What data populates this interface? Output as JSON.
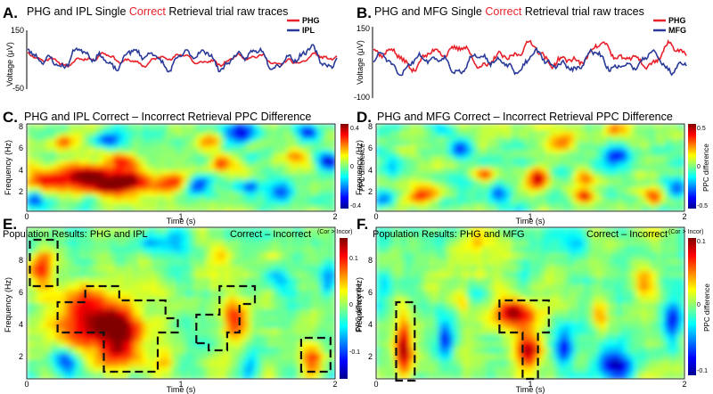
{
  "figure": {
    "panels": [
      {
        "letter": "A.",
        "title_pre": "PHG and IPL Single ",
        "title_hl": "Correct",
        "title_post": " Retrieval trial raw traces"
      },
      {
        "letter": "B.",
        "title_pre": "PHG and MFG Single ",
        "title_hl": "Correct",
        "title_post": " Retrieval trial raw traces"
      },
      {
        "letter": "C.",
        "title": "PHG and IPL Correct – Incorrect Retrieval PPC Difference"
      },
      {
        "letter": "D.",
        "title": "PHG and MFG Correct – Incorrect Retrieval PPC Difference"
      },
      {
        "letter": "E.",
        "title_left": "Population Results:  PHG and IPL",
        "title_right": "Correct – Incorrect",
        "cb_note": "(Cor > Incor)"
      },
      {
        "letter": "F.",
        "title_left": "Population Results:  PHG and MFG",
        "title_right": "Correct – Incorrect",
        "cb_note": "(Cor > Incor)"
      }
    ]
  },
  "colors": {
    "phg": "#e8212b",
    "ipl": "#2a3a98",
    "mfg": "#2a3a98",
    "highlight": "#e8212b"
  },
  "chart_data": [
    {
      "id": "A",
      "type": "line",
      "title": "PHG and IPL Single Correct Retrieval trial raw traces",
      "xlabel": "",
      "ylabel": "Voltage (μV)",
      "ylim": [
        -50,
        150
      ],
      "yticks": [
        -50,
        150
      ],
      "series": [
        {
          "name": "PHG",
          "color": "#e8212b",
          "seed": 11,
          "amp": 0.55,
          "offset": 0.15
        },
        {
          "name": "IPL",
          "color": "#2a3a98",
          "seed": 23,
          "amp": 1.0,
          "offset": 0.2
        }
      ],
      "legend": "top-right"
    },
    {
      "id": "B",
      "type": "line",
      "title": "PHG and MFG Single Correct Retrieval trial raw traces",
      "xlabel": "",
      "ylabel": "Voltage (μV)",
      "ylim": [
        -100,
        150
      ],
      "yticks": [
        -100,
        150
      ],
      "series": [
        {
          "name": "PHG",
          "color": "#e8212b",
          "seed": 37,
          "amp": 1.0,
          "offset": 0.25
        },
        {
          "name": "MFG",
          "color": "#2a3a98",
          "seed": 51,
          "amp": 0.9,
          "offset": 0.05
        }
      ],
      "legend": "top-right"
    },
    {
      "id": "C",
      "type": "heatmap",
      "title": "PHG and IPL Correct – Incorrect Retrieval PPC Difference",
      "xlabel": "Time (s)",
      "ylabel": "Frequency (Hz)",
      "xlim": [
        0,
        2
      ],
      "ylim": [
        1,
        9
      ],
      "xticks": [
        "0",
        "1",
        "2"
      ],
      "yticks": [
        "2",
        "4",
        "6",
        "8"
      ],
      "colorbar": {
        "label": "PPC difference",
        "range": [
          -0.4,
          0.4
        ],
        "ticks": [
          "0.4",
          "0",
          "-0.4"
        ]
      },
      "blobs": [
        [
          0.12,
          4.0,
          0.1,
          0.8,
          0.25
        ],
        [
          0.35,
          4.0,
          0.12,
          0.9,
          0.35
        ],
        [
          0.62,
          3.6,
          0.14,
          0.9,
          0.4
        ],
        [
          0.62,
          5.6,
          0.08,
          0.6,
          0.2
        ],
        [
          0.95,
          3.6,
          0.08,
          0.7,
          0.3
        ],
        [
          1.1,
          3.4,
          0.06,
          0.6,
          -0.3
        ],
        [
          1.45,
          3.2,
          0.05,
          0.5,
          -0.25
        ],
        [
          1.38,
          8.2,
          0.08,
          0.6,
          -0.35
        ],
        [
          0.42,
          2.2,
          0.05,
          0.4,
          -0.2
        ],
        [
          1.65,
          2.8,
          0.06,
          0.7,
          -0.3
        ],
        [
          1.82,
          8.3,
          0.05,
          0.5,
          -0.35
        ],
        [
          1.95,
          5.5,
          0.05,
          0.6,
          -0.35
        ],
        [
          0.55,
          7.6,
          0.08,
          0.6,
          -0.3
        ],
        [
          0.25,
          7.3,
          0.05,
          0.4,
          0.2
        ],
        [
          1.25,
          5.3,
          0.05,
          0.5,
          0.25
        ],
        [
          1.75,
          6.0,
          0.06,
          0.5,
          0.2
        ],
        [
          0.05,
          2.2,
          0.04,
          0.5,
          -0.25
        ],
        [
          1.2,
          7.5,
          0.05,
          0.5,
          0.2
        ]
      ]
    },
    {
      "id": "D",
      "type": "heatmap",
      "title": "PHG and MFG Correct – Incorrect Retrieval PPC Difference",
      "xlabel": "Time (s)",
      "ylabel": "Frequency (Hz)",
      "xlim": [
        0,
        2
      ],
      "ylim": [
        1,
        9
      ],
      "xticks": [
        "0",
        "1",
        "2"
      ],
      "yticks": [
        "2",
        "4",
        "6",
        "8"
      ],
      "colorbar": {
        "label": "PPC difference",
        "range": [
          -0.5,
          0.5
        ],
        "ticks": [
          "0.5",
          "0",
          "-0.5"
        ]
      },
      "blobs": [
        [
          1.05,
          4.0,
          0.05,
          0.7,
          0.5
        ],
        [
          0.3,
          2.5,
          0.07,
          0.6,
          0.35
        ],
        [
          1.2,
          7.2,
          0.07,
          0.6,
          0.3
        ],
        [
          1.8,
          2.2,
          0.05,
          0.5,
          0.35
        ],
        [
          0.8,
          2.6,
          0.05,
          0.6,
          -0.35
        ],
        [
          0.55,
          6.8,
          0.05,
          0.6,
          -0.3
        ],
        [
          1.55,
          6.0,
          0.06,
          0.7,
          -0.3
        ],
        [
          1.35,
          4.0,
          0.05,
          0.6,
          0.3
        ],
        [
          0.1,
          5.0,
          0.05,
          0.6,
          -0.2
        ],
        [
          1.95,
          3.0,
          0.05,
          0.6,
          -0.3
        ],
        [
          0.05,
          2.2,
          0.04,
          0.5,
          -0.25
        ],
        [
          0.7,
          4.3,
          0.05,
          0.5,
          0.3
        ],
        [
          1.55,
          8.5,
          0.06,
          0.4,
          0.25
        ],
        [
          1.35,
          2.3,
          0.04,
          0.4,
          0.3
        ],
        [
          0.45,
          8.4,
          0.05,
          0.4,
          -0.2
        ]
      ]
    },
    {
      "id": "E",
      "type": "heatmap",
      "title": "Population Results: PHG and IPL Correct – Incorrect",
      "xlabel": "Time (s)",
      "ylabel": "Frequency (Hz)",
      "xlim": [
        0,
        2
      ],
      "ylim": [
        1,
        9.5
      ],
      "xticks": [
        "0",
        "1",
        "2"
      ],
      "yticks": [
        "2",
        "4",
        "6",
        "8"
      ],
      "colorbar": {
        "label": "PPC difference",
        "range": [
          -0.15,
          0.15
        ],
        "ticks": [
          "0.1",
          "0",
          "-0.1"
        ],
        "note": "(Cor > Incor)"
      },
      "blobs": [
        [
          0.38,
          4.2,
          0.15,
          1.2,
          0.13
        ],
        [
          0.6,
          3.4,
          0.1,
          1.5,
          0.13
        ],
        [
          0.1,
          7.2,
          0.05,
          0.8,
          0.1
        ],
        [
          1.35,
          4.2,
          0.06,
          0.8,
          0.1
        ],
        [
          1.85,
          2.2,
          0.05,
          0.6,
          0.09
        ],
        [
          0.25,
          2.0,
          0.06,
          0.6,
          -0.08
        ],
        [
          1.65,
          6.4,
          0.05,
          0.6,
          -0.06
        ],
        [
          1.45,
          1.8,
          0.04,
          0.6,
          -0.06
        ],
        [
          1.0,
          8.5,
          0.08,
          0.6,
          -0.05
        ],
        [
          1.95,
          6.4,
          0.04,
          0.6,
          -0.06
        ],
        [
          0.9,
          2.0,
          0.05,
          0.5,
          0.06
        ],
        [
          1.25,
          7.8,
          0.05,
          0.5,
          0.06
        ],
        [
          0.8,
          8.6,
          0.05,
          0.4,
          -0.05
        ]
      ],
      "sig_regions": [
        [
          [
            0.02,
            6.2
          ],
          [
            0.02,
            8.8
          ],
          [
            0.2,
            8.8
          ],
          [
            0.2,
            6.2
          ]
        ],
        [
          [
            0.2,
            3.6
          ],
          [
            0.2,
            5.3
          ],
          [
            0.38,
            5.3
          ],
          [
            0.38,
            6.2
          ],
          [
            0.6,
            6.2
          ],
          [
            0.6,
            5.4
          ],
          [
            0.9,
            5.4
          ],
          [
            0.9,
            4.4
          ],
          [
            0.98,
            4.4
          ],
          [
            0.98,
            3.6
          ],
          [
            0.85,
            3.6
          ],
          [
            0.85,
            1.4
          ],
          [
            0.5,
            1.4
          ],
          [
            0.5,
            3.6
          ]
        ],
        [
          [
            1.1,
            3.0
          ],
          [
            1.1,
            4.6
          ],
          [
            1.25,
            4.6
          ],
          [
            1.25,
            6.2
          ],
          [
            1.48,
            6.2
          ],
          [
            1.48,
            5.2
          ],
          [
            1.38,
            5.2
          ],
          [
            1.38,
            3.6
          ],
          [
            1.3,
            3.6
          ],
          [
            1.3,
            2.6
          ],
          [
            1.18,
            2.6
          ],
          [
            1.18,
            3.0
          ]
        ],
        [
          [
            1.78,
            1.4
          ],
          [
            1.78,
            3.3
          ],
          [
            1.97,
            3.3
          ],
          [
            1.97,
            1.4
          ]
        ]
      ]
    },
    {
      "id": "F",
      "type": "heatmap",
      "title": "Population Results: PHG and MFG Correct – Incorrect",
      "xlabel": "Time (s)",
      "ylabel": "Frequency (Hz)",
      "xlim": [
        0,
        2
      ],
      "ylim": [
        1,
        9.5
      ],
      "xticks": [
        "0",
        "1",
        "2"
      ],
      "yticks": [
        "2",
        "4",
        "6",
        "8"
      ],
      "colorbar": {
        "label": "PPC difference",
        "range": [
          -0.12,
          0.12
        ],
        "ticks": [
          "0.1",
          "0",
          "-0.1"
        ],
        "note": "(Cor > Incor)"
      },
      "blobs": [
        [
          0.88,
          4.6,
          0.09,
          0.7,
          0.11
        ],
        [
          0.98,
          2.6,
          0.06,
          0.9,
          0.09
        ],
        [
          0.18,
          2.6,
          0.04,
          1.4,
          0.1
        ],
        [
          1.55,
          1.8,
          0.08,
          0.6,
          -0.11
        ],
        [
          0.45,
          3.0,
          0.04,
          0.8,
          -0.08
        ],
        [
          1.22,
          2.6,
          0.04,
          0.8,
          -0.08
        ],
        [
          1.92,
          4.0,
          0.04,
          1.0,
          -0.08
        ],
        [
          1.3,
          8.5,
          0.06,
          0.6,
          -0.05
        ],
        [
          0.65,
          8.6,
          0.06,
          0.5,
          0.06
        ],
        [
          1.75,
          6.4,
          0.05,
          0.6,
          0.06
        ],
        [
          0.55,
          5.5,
          0.04,
          0.6,
          0.05
        ],
        [
          0.05,
          6.5,
          0.04,
          0.5,
          -0.05
        ],
        [
          1.45,
          4.5,
          0.04,
          0.6,
          0.06
        ]
      ],
      "sig_regions": [
        [
          [
            0.13,
            0.9
          ],
          [
            0.13,
            5.3
          ],
          [
            0.25,
            5.3
          ],
          [
            0.25,
            0.9
          ]
        ],
        [
          [
            0.8,
            3.6
          ],
          [
            0.8,
            5.4
          ],
          [
            1.12,
            5.4
          ],
          [
            1.12,
            3.6
          ],
          [
            1.05,
            3.6
          ],
          [
            1.05,
            1.0
          ],
          [
            0.95,
            1.0
          ],
          [
            0.95,
            3.6
          ]
        ]
      ]
    }
  ]
}
